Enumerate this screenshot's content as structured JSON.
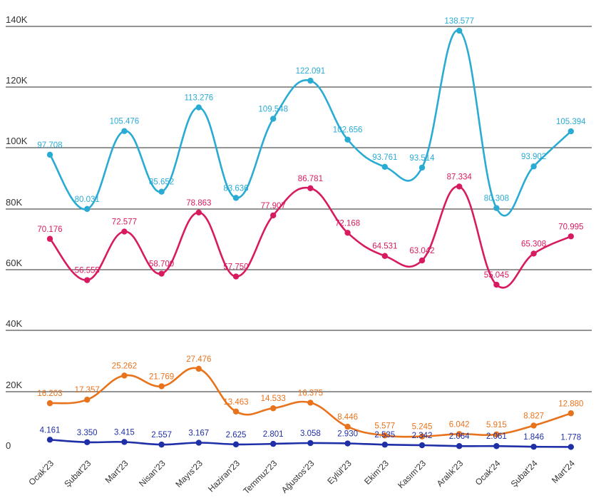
{
  "chart_data": {
    "type": "line",
    "title": "",
    "xlabel": "",
    "ylabel": "",
    "categories": [
      "Ocak'23",
      "Şubat'23",
      "Mart'23",
      "Nisan'23",
      "Mayıs'23",
      "Haziran'23",
      "Temmuz'23",
      "Ağustos'23",
      "Eylül'23",
      "Ekim'23",
      "Kasım'23",
      "Aralık'23",
      "Ocak'24",
      "Şubat'24",
      "Mart'24"
    ],
    "y_ticks": [
      {
        "value": 0,
        "label": "0"
      },
      {
        "value": 20000,
        "label": "20K"
      },
      {
        "value": 40000,
        "label": "40K"
      },
      {
        "value": 60000,
        "label": "60K"
      },
      {
        "value": 80000,
        "label": "80K"
      },
      {
        "value": 100000,
        "label": "100K"
      },
      {
        "value": 120000,
        "label": "120K"
      },
      {
        "value": 140000,
        "label": "140K"
      }
    ],
    "ylim": [
      0,
      140000
    ],
    "grid": true,
    "legend": "none",
    "series": [
      {
        "color": "#29abd4",
        "values": [
          97708,
          80031,
          105476,
          85652,
          113276,
          83636,
          109548,
          122091,
          102656,
          93761,
          93514,
          138577,
          80308,
          93902,
          105394
        ],
        "labels": [
          "97.708",
          "80.031",
          "105.476",
          "85.652",
          "113.276",
          "83.636",
          "109.548",
          "122.091",
          "102.656",
          "93.761",
          "93.514",
          "138.577",
          "80.308",
          "93.902",
          "105.394"
        ]
      },
      {
        "color": "#d81b60",
        "values": [
          70176,
          56555,
          72577,
          58700,
          78863,
          57750,
          77907,
          86781,
          72168,
          64531,
          63042,
          87334,
          55045,
          65308,
          70995
        ],
        "labels": [
          "70.176",
          "56.555",
          "72.577",
          "58.700",
          "78.863",
          "57.750",
          "77.907",
          "86.781",
          "72.168",
          "64.531",
          "63.042",
          "87.334",
          "55.045",
          "65.308",
          "70.995"
        ]
      },
      {
        "color": "#e8731c",
        "values": [
          16203,
          17357,
          25262,
          21769,
          27476,
          13463,
          14533,
          16375,
          8446,
          5577,
          5245,
          6042,
          5915,
          8827,
          12880
        ],
        "labels": [
          "16.203",
          "17.357",
          "25.262",
          "21.769",
          "27.476",
          "13.463",
          "14.533",
          "16.375",
          "8.446",
          "5.577",
          "5.245",
          "6.042",
          "5.915",
          "8.827",
          "12.880"
        ]
      },
      {
        "color": "#1f2fa8",
        "values": [
          4161,
          3350,
          3415,
          2557,
          3167,
          2625,
          2801,
          3058,
          2930,
          2535,
          2342,
          2064,
          2061,
          1846,
          1778
        ],
        "labels": [
          "4.161",
          "3.350",
          "3.415",
          "2.557",
          "3.167",
          "2.625",
          "2.801",
          "3.058",
          "2.930",
          "2.535",
          "2.342",
          "2.064",
          "2.061",
          "1.846",
          "1.778"
        ]
      }
    ]
  }
}
